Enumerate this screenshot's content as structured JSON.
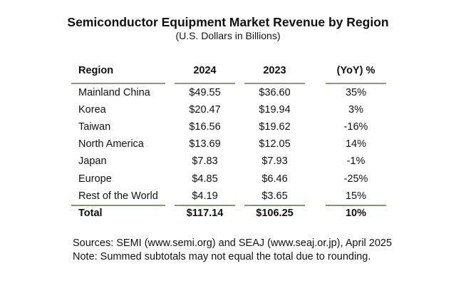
{
  "chart_data": {
    "type": "table",
    "title": "Semiconductor Equipment Market Revenue by Region",
    "subtitle": "(U.S. Dollars in Billions)",
    "columns": [
      "Region",
      "2024",
      "2023",
      "(YoY) %"
    ],
    "rows": [
      [
        "Mainland China",
        "$49.55",
        "$36.60",
        "35%"
      ],
      [
        "Korea",
        "$20.47",
        "$19.94",
        "3%"
      ],
      [
        "Taiwan",
        "$16.56",
        "$19.62",
        "-16%"
      ],
      [
        "North America",
        "$13.69",
        "$12.05",
        "14%"
      ],
      [
        "Japan",
        "$7.83",
        "$7.93",
        "-1%"
      ],
      [
        "Europe",
        "$4.85",
        "$6.46",
        "-25%"
      ],
      [
        "Rest of the World",
        "$4.19",
        "$3.65",
        "15%"
      ]
    ],
    "total": [
      "Total",
      "$117.14",
      "$106.25",
      "10%"
    ]
  },
  "notes": {
    "sources": "Sources: SEMI (www.semi.org) and SEAJ (www.seaj.or.jp), April 2025",
    "note": "Note: Summed subtotals may not equal the total due to rounding."
  },
  "colors": {
    "header_rule": "#8e9a80",
    "total_rule": "#7f9b62"
  }
}
